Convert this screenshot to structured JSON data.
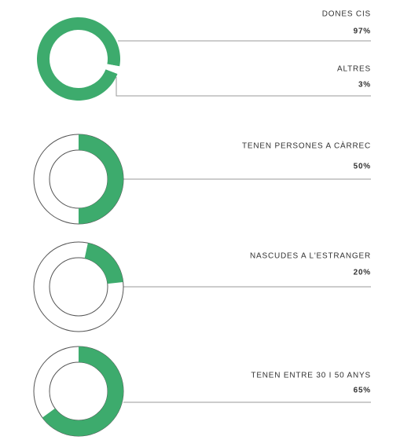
{
  "chart_data": [
    {
      "type": "donut",
      "categories": [
        "DONES CIS",
        "ALTRES"
      ],
      "values": [
        97,
        3
      ],
      "value_labels": [
        "97%",
        "3%"
      ],
      "colors": [
        "#3dab6d",
        "#ffffff"
      ]
    },
    {
      "type": "donut",
      "categories": [
        "TENEN PERSONES A CÀRREC"
      ],
      "values": [
        50
      ],
      "value_labels": [
        "50%"
      ],
      "colors": [
        "#3dab6d"
      ]
    },
    {
      "type": "donut",
      "categories": [
        "NASCUDES A L'ESTRANGER"
      ],
      "values": [
        20
      ],
      "value_labels": [
        "20%"
      ],
      "colors": [
        "#3dab6d"
      ]
    },
    {
      "type": "donut",
      "categories": [
        "TENEN ENTRE 30 I 50 ANYS"
      ],
      "values": [
        65
      ],
      "value_labels": [
        "65%"
      ],
      "colors": [
        "#3dab6d"
      ]
    }
  ]
}
